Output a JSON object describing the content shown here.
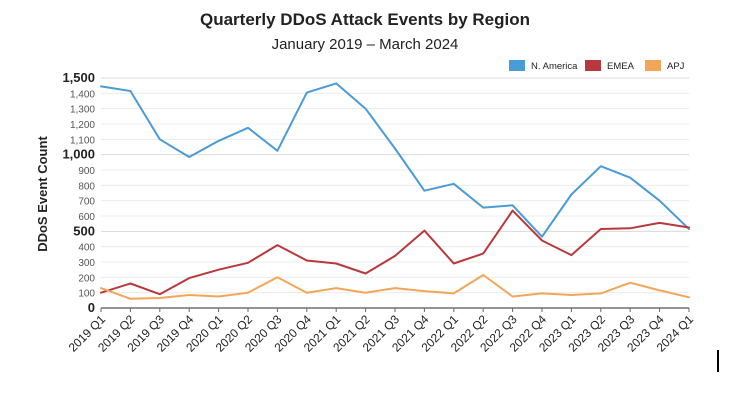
{
  "chart_data": {
    "type": "line",
    "title": "Quarterly DDoS Attack Events by Region",
    "subtitle": "January 2019 – March 2024",
    "xlabel": "",
    "ylabel": "DDoS Event Count",
    "ylim": [
      0,
      1500
    ],
    "yticks": [
      0,
      100,
      200,
      300,
      400,
      500,
      600,
      700,
      800,
      900,
      1000,
      1100,
      1200,
      1300,
      1400,
      1500
    ],
    "ytick_labels": [
      "0",
      "100",
      "200",
      "300",
      "400",
      "500",
      "600",
      "700",
      "800",
      "900",
      "1,000",
      "1,100",
      "1,200",
      "1,300",
      "1,400",
      "1,500"
    ],
    "major_ticks": [
      0,
      500,
      1000,
      1500
    ],
    "grid": true,
    "legend_position": "top-right",
    "categories": [
      "2019 Q1",
      "2019 Q2",
      "2019 Q3",
      "2019 Q4",
      "2020 Q1",
      "2020 Q2",
      "2020 Q3",
      "2020 Q4",
      "2021 Q1",
      "2021 Q2",
      "2021 Q3",
      "2021 Q4",
      "2022 Q1",
      "2022 Q2",
      "2022 Q3",
      "2022 Q4",
      "2023 Q1",
      "2023 Q2",
      "2023 Q3",
      "2023 Q4",
      "2024 Q1"
    ],
    "series": [
      {
        "name": "N. America",
        "color": "#4A9BD6",
        "values": [
          1445,
          1415,
          1100,
          985,
          1090,
          1175,
          1025,
          1405,
          1465,
          1300,
          1040,
          765,
          810,
          655,
          670,
          465,
          740,
          925,
          850,
          700,
          515
        ]
      },
      {
        "name": "EMEA",
        "color": "#B8393D",
        "values": [
          100,
          160,
          90,
          195,
          250,
          295,
          410,
          310,
          290,
          225,
          340,
          505,
          290,
          355,
          635,
          440,
          345,
          515,
          520,
          555,
          525
        ]
      },
      {
        "name": "APJ",
        "color": "#F2A65A",
        "values": [
          130,
          60,
          65,
          85,
          75,
          100,
          200,
          100,
          130,
          100,
          130,
          110,
          95,
          215,
          75,
          95,
          85,
          95,
          165,
          115,
          70
        ]
      }
    ]
  }
}
